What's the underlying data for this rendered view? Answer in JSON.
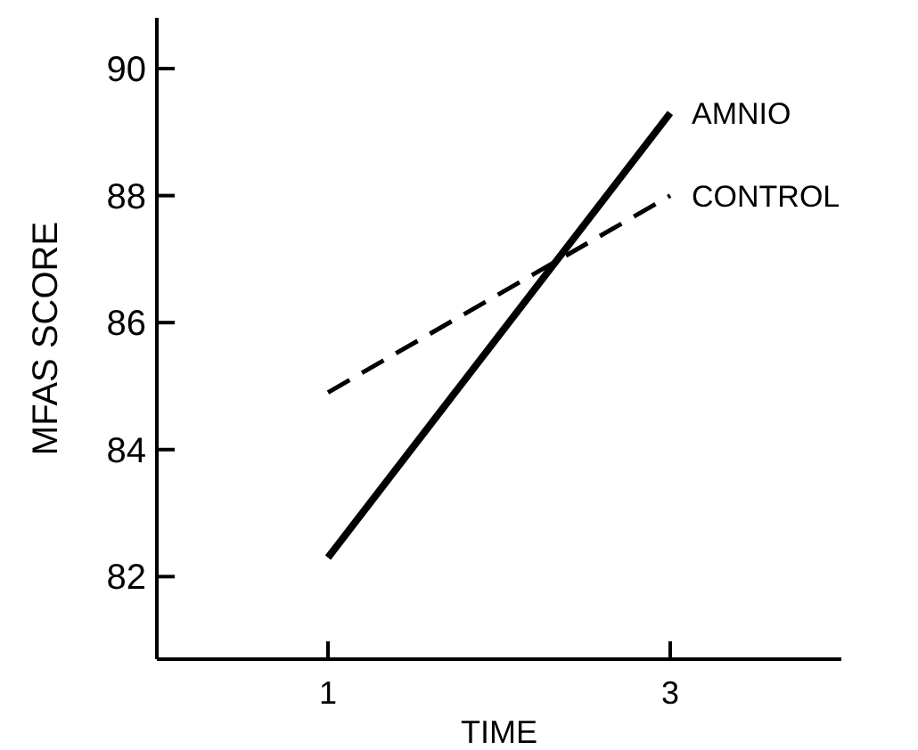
{
  "chart_data": {
    "type": "line",
    "xlabel": "TIME",
    "ylabel": "MFAS SCORE",
    "x": [
      1,
      3
    ],
    "xlim": [
      0,
      4
    ],
    "xticks": [
      1,
      3
    ],
    "ylim": [
      80.7,
      90.8
    ],
    "yticks": [
      82,
      84,
      86,
      88,
      90
    ],
    "grid": false,
    "marker": "none",
    "series": [
      {
        "name": "AMNIO",
        "color": "#000000",
        "values": [
          82.3,
          89.3
        ],
        "line_style": "solid"
      },
      {
        "name": "CONTROL",
        "color": "#000000",
        "values": [
          84.9,
          88.0
        ],
        "line_style": "dashed"
      }
    ]
  }
}
